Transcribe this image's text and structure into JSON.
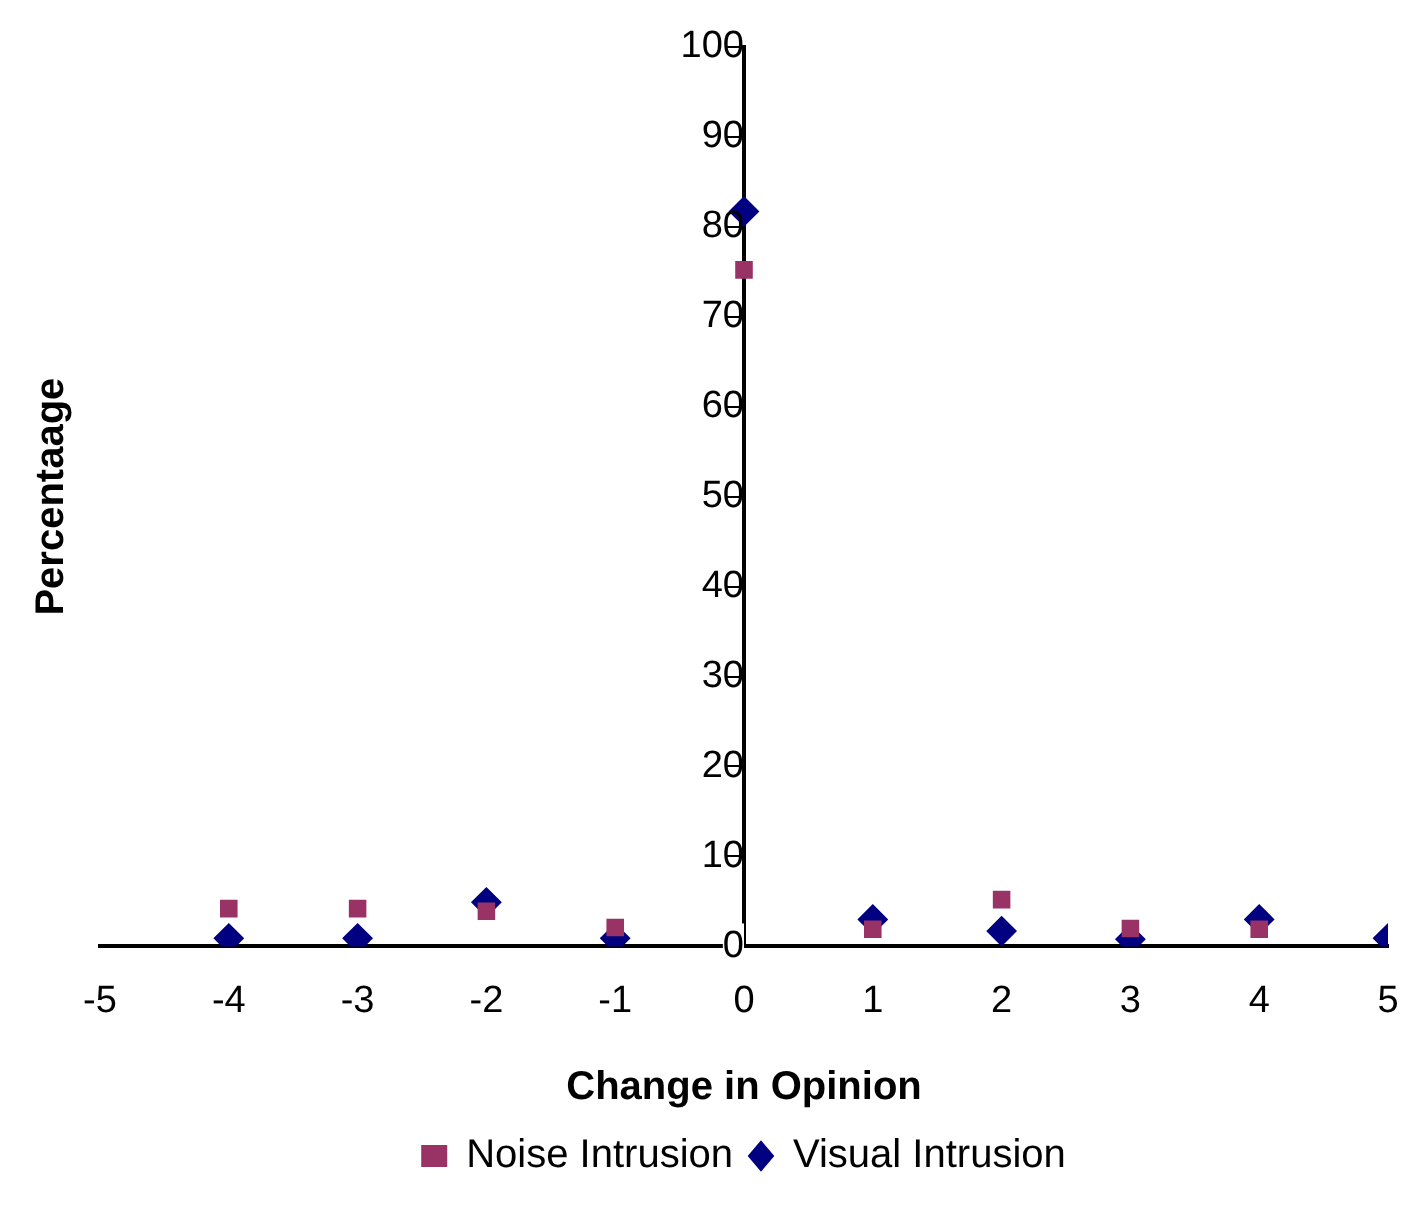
{
  "chart_data": {
    "type": "scatter",
    "xlabel": "Change in Opinion",
    "ylabel": "Percentaage",
    "x": [
      -4,
      -3,
      -2,
      -1,
      0,
      1,
      2,
      3,
      4,
      5
    ],
    "xlim": [
      -5,
      5
    ],
    "xticks": [
      -5,
      -4,
      -3,
      -2,
      -1,
      0,
      1,
      2,
      3,
      4,
      5
    ],
    "ylim": [
      0,
      100
    ],
    "yticks": [
      0,
      10,
      20,
      30,
      40,
      50,
      60,
      70,
      80,
      90,
      100
    ],
    "grid": false,
    "legend": "bottom",
    "series": [
      {
        "name": "Noise Intrusion",
        "color": "#993366",
        "marker": "square",
        "values": [
          4.2,
          4.2,
          3.9,
          2.1,
          75.2,
          1.9,
          5.2,
          2.0,
          1.9,
          null
        ]
      },
      {
        "name": "Visual Intrusion",
        "color": "#000080",
        "marker": "diamond",
        "values": [
          0.9,
          0.9,
          4.9,
          0.9,
          81.7,
          3.0,
          1.7,
          0.8,
          3.0,
          0.9
        ]
      }
    ]
  }
}
